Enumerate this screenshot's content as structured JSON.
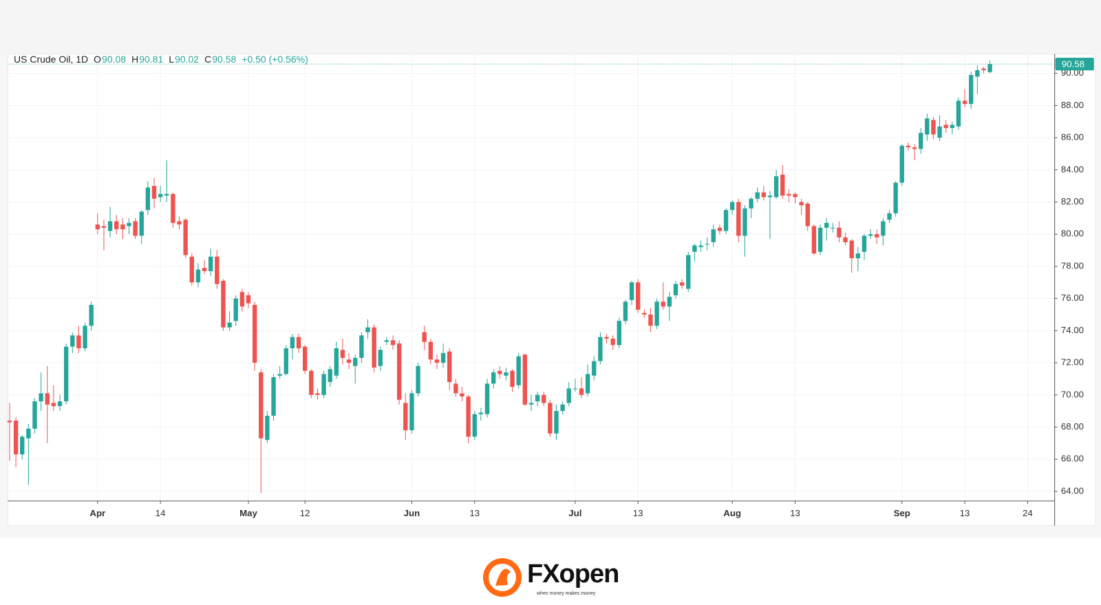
{
  "chart_data": {
    "type": "candlestick",
    "title": "US Crude Oil, 1D",
    "ohlc_letters": [
      "O",
      "H",
      "L",
      "C"
    ],
    "change_label": "+0.50 (+0.56%)",
    "up_color": "#26a69a",
    "down_color": "#ef5350",
    "grid": true,
    "ylim": [
      63.4,
      91.2
    ],
    "yticks": [
      {
        "value": 64,
        "label": "64.00"
      },
      {
        "value": 66,
        "label": "66.00"
      },
      {
        "value": 68,
        "label": "68.00"
      },
      {
        "value": 70,
        "label": "70.00"
      },
      {
        "value": 72,
        "label": "72.00"
      },
      {
        "value": 74,
        "label": "74.00"
      },
      {
        "value": 76,
        "label": "76.00"
      },
      {
        "value": 78,
        "label": "78.00"
      },
      {
        "value": 80,
        "label": "80.00"
      },
      {
        "value": 82,
        "label": "82.00"
      },
      {
        "value": 84,
        "label": "84.00"
      },
      {
        "value": 86,
        "label": "86.00"
      },
      {
        "value": 88,
        "label": "88.00"
      },
      {
        "value": 90,
        "label": "90.00"
      }
    ],
    "xlim": [
      -0.3,
      166.3
    ],
    "xticks": [
      {
        "value": 14,
        "label": "Apr"
      },
      {
        "value": 24,
        "label": "14"
      },
      {
        "value": 38,
        "label": "May"
      },
      {
        "value": 47,
        "label": "12"
      },
      {
        "value": 64,
        "label": "Jun"
      },
      {
        "value": 74,
        "label": "13"
      },
      {
        "value": 90,
        "label": "Jul"
      },
      {
        "value": 100,
        "label": "13"
      },
      {
        "value": 115,
        "label": "Aug"
      },
      {
        "value": 125,
        "label": "13"
      },
      {
        "value": 142,
        "label": "Sep"
      },
      {
        "value": 152,
        "label": "13"
      },
      {
        "value": 162,
        "label": "24"
      }
    ],
    "ohlc": [
      [
        68.4,
        69.5,
        65.9,
        68.3
      ],
      [
        68.4,
        68.6,
        65.5,
        66.3
      ],
      [
        66.3,
        67.5,
        66.0,
        67.4
      ],
      [
        67.3,
        68.2,
        64.4,
        67.9
      ],
      [
        67.9,
        69.8,
        67.6,
        69.6
      ],
      [
        69.6,
        71.4,
        69.0,
        70.1
      ],
      [
        70.1,
        71.8,
        67.0,
        69.4
      ],
      [
        69.5,
        70.6,
        69.0,
        69.3
      ],
      [
        69.3,
        70.0,
        69.0,
        69.6
      ],
      [
        69.6,
        73.2,
        69.4,
        73.0
      ],
      [
        73.0,
        73.9,
        72.6,
        73.7
      ],
      [
        73.7,
        74.3,
        72.6,
        72.9
      ],
      [
        72.9,
        74.5,
        72.7,
        74.3
      ],
      [
        74.3,
        75.8,
        74.0,
        75.6
      ],
      [
        80.6,
        81.3,
        80.0,
        80.3
      ],
      [
        80.5,
        80.9,
        79.0,
        80.4
      ],
      [
        80.2,
        81.7,
        79.8,
        80.8
      ],
      [
        80.8,
        81.2,
        80.0,
        80.3
      ],
      [
        80.6,
        81.0,
        79.7,
        80.3
      ],
      [
        80.5,
        81.0,
        80.0,
        80.7
      ],
      [
        80.8,
        81.0,
        79.7,
        79.9
      ],
      [
        79.9,
        81.5,
        79.4,
        81.4
      ],
      [
        81.5,
        83.3,
        81.2,
        82.9
      ],
      [
        83.0,
        83.5,
        81.6,
        82.2
      ],
      [
        82.3,
        83.0,
        82.0,
        82.5
      ],
      [
        82.4,
        84.6,
        82.0,
        82.5
      ],
      [
        82.5,
        82.6,
        80.4,
        80.7
      ],
      [
        80.8,
        81.1,
        80.3,
        80.6
      ],
      [
        80.9,
        81.0,
        78.5,
        78.7
      ],
      [
        78.6,
        78.8,
        76.8,
        77.0
      ],
      [
        77.0,
        78.2,
        76.7,
        77.8
      ],
      [
        77.9,
        78.4,
        77.5,
        77.7
      ],
      [
        77.7,
        79.1,
        77.4,
        78.6
      ],
      [
        78.6,
        79.0,
        76.6,
        76.9
      ],
      [
        77.1,
        77.2,
        74.0,
        74.2
      ],
      [
        74.2,
        75.2,
        74.0,
        74.5
      ],
      [
        74.6,
        76.2,
        74.3,
        76.0
      ],
      [
        76.4,
        76.6,
        75.2,
        75.5
      ],
      [
        76.2,
        76.4,
        75.4,
        75.7
      ],
      [
        75.6,
        75.8,
        71.5,
        72.0
      ],
      [
        71.4,
        71.6,
        63.9,
        67.3
      ],
      [
        67.2,
        69.0,
        67.0,
        68.7
      ],
      [
        68.7,
        71.3,
        68.4,
        71.1
      ],
      [
        71.2,
        71.8,
        71.0,
        71.3
      ],
      [
        71.3,
        73.1,
        71.2,
        72.9
      ],
      [
        72.9,
        73.8,
        72.2,
        73.6
      ],
      [
        73.6,
        73.8,
        72.6,
        72.9
      ],
      [
        73.0,
        73.1,
        71.3,
        71.5
      ],
      [
        71.5,
        71.6,
        69.8,
        70.0
      ],
      [
        70.1,
        70.4,
        69.7,
        70.0
      ],
      [
        70.0,
        71.5,
        69.8,
        71.3
      ],
      [
        70.8,
        71.8,
        70.5,
        71.6
      ],
      [
        71.2,
        73.3,
        71.0,
        72.9
      ],
      [
        72.8,
        73.5,
        71.9,
        72.3
      ],
      [
        72.2,
        72.6,
        71.6,
        72.0
      ],
      [
        71.8,
        72.5,
        70.7,
        72.3
      ],
      [
        72.3,
        73.9,
        72.0,
        73.7
      ],
      [
        73.9,
        74.7,
        73.5,
        74.2
      ],
      [
        74.2,
        74.4,
        71.4,
        71.7
      ],
      [
        71.8,
        73.0,
        71.5,
        72.8
      ],
      [
        73.3,
        73.6,
        73.1,
        73.4
      ],
      [
        73.4,
        73.7,
        72.8,
        73.1
      ],
      [
        73.2,
        73.4,
        69.4,
        69.7
      ],
      [
        69.5,
        70.1,
        67.2,
        67.8
      ],
      [
        67.8,
        70.3,
        67.6,
        70.1
      ],
      [
        70.1,
        72.0,
        69.9,
        71.8
      ],
      [
        73.9,
        74.3,
        72.8,
        73.3
      ],
      [
        73.3,
        73.5,
        71.9,
        72.2
      ],
      [
        72.2,
        72.5,
        71.6,
        72.0
      ],
      [
        72.0,
        73.2,
        71.7,
        72.6
      ],
      [
        72.7,
        72.9,
        70.3,
        70.8
      ],
      [
        70.7,
        71.0,
        69.9,
        70.1
      ],
      [
        70.1,
        70.5,
        69.6,
        69.9
      ],
      [
        69.9,
        70.0,
        67.0,
        67.4
      ],
      [
        67.4,
        69.0,
        67.2,
        68.8
      ],
      [
        68.8,
        69.2,
        68.4,
        68.9
      ],
      [
        68.8,
        71.0,
        68.6,
        70.7
      ],
      [
        70.7,
        71.6,
        70.4,
        71.4
      ],
      [
        71.5,
        71.8,
        71.0,
        71.3
      ],
      [
        71.2,
        71.7,
        70.9,
        71.4
      ],
      [
        71.5,
        71.6,
        70.2,
        70.5
      ],
      [
        70.6,
        72.6,
        70.4,
        72.4
      ],
      [
        72.5,
        72.6,
        69.3,
        69.4
      ],
      [
        69.4,
        70.0,
        69.0,
        69.5
      ],
      [
        69.6,
        70.2,
        69.3,
        70.0
      ],
      [
        70.0,
        70.2,
        69.3,
        69.5
      ],
      [
        69.5,
        69.7,
        67.4,
        67.6
      ],
      [
        67.6,
        69.4,
        67.2,
        69.0
      ],
      [
        69.0,
        69.6,
        68.8,
        69.4
      ],
      [
        69.5,
        70.8,
        69.3,
        70.4
      ],
      [
        70.4,
        71.0,
        70.2,
        70.4
      ],
      [
        70.4,
        71.1,
        69.8,
        70.0
      ],
      [
        70.1,
        71.9,
        69.9,
        71.3
      ],
      [
        71.2,
        72.4,
        70.9,
        72.1
      ],
      [
        72.1,
        73.9,
        71.9,
        73.6
      ],
      [
        73.6,
        73.8,
        73.2,
        73.5
      ],
      [
        73.5,
        73.7,
        72.8,
        73.1
      ],
      [
        73.1,
        74.8,
        72.9,
        74.6
      ],
      [
        74.6,
        75.9,
        74.4,
        75.8
      ],
      [
        75.9,
        77.1,
        75.6,
        77.0
      ],
      [
        77.0,
        77.2,
        75.1,
        75.3
      ],
      [
        75.1,
        75.3,
        74.8,
        75.0
      ],
      [
        75.0,
        75.4,
        73.9,
        74.3
      ],
      [
        74.3,
        76.0,
        74.1,
        75.8
      ],
      [
        75.8,
        77.0,
        75.3,
        75.5
      ],
      [
        75.5,
        76.4,
        74.6,
        76.1
      ],
      [
        76.2,
        77.1,
        76.0,
        76.9
      ],
      [
        77.0,
        77.2,
        76.6,
        76.8
      ],
      [
        76.6,
        78.9,
        76.4,
        78.7
      ],
      [
        78.9,
        79.4,
        78.3,
        79.3
      ],
      [
        79.2,
        79.6,
        78.9,
        79.3
      ],
      [
        79.4,
        79.8,
        79.0,
        79.4
      ],
      [
        79.5,
        80.6,
        79.2,
        80.3
      ],
      [
        80.4,
        80.6,
        80.0,
        80.2
      ],
      [
        80.2,
        81.6,
        80.0,
        81.5
      ],
      [
        81.5,
        82.1,
        81.2,
        82.0
      ],
      [
        82.0,
        82.2,
        79.5,
        79.9
      ],
      [
        79.9,
        81.8,
        78.6,
        81.6
      ],
      [
        81.6,
        82.3,
        81.0,
        82.2
      ],
      [
        82.2,
        82.9,
        82.0,
        82.6
      ],
      [
        82.6,
        83.0,
        82.1,
        82.3
      ],
      [
        82.3,
        82.7,
        79.7,
        82.4
      ],
      [
        82.3,
        84.0,
        82.2,
        83.6
      ],
      [
        83.7,
        84.3,
        82.2,
        82.4
      ],
      [
        82.5,
        82.8,
        82.0,
        82.4
      ],
      [
        82.5,
        82.6,
        81.9,
        82.3
      ],
      [
        82.0,
        82.2,
        81.2,
        81.8
      ],
      [
        81.9,
        82.0,
        80.2,
        80.5
      ],
      [
        80.5,
        80.6,
        78.7,
        78.8
      ],
      [
        78.9,
        80.6,
        78.7,
        80.4
      ],
      [
        80.4,
        81.0,
        79.6,
        80.7
      ],
      [
        80.4,
        80.7,
        80.1,
        80.4
      ],
      [
        80.4,
        80.8,
        79.5,
        79.8
      ],
      [
        79.8,
        80.1,
        79.3,
        79.5
      ],
      [
        79.6,
        79.7,
        77.6,
        78.5
      ],
      [
        78.5,
        79.2,
        77.7,
        78.8
      ],
      [
        78.9,
        80.0,
        78.4,
        79.9
      ],
      [
        79.9,
        80.3,
        79.7,
        80.0
      ],
      [
        80.0,
        80.3,
        79.4,
        79.8
      ],
      [
        79.9,
        81.0,
        79.3,
        80.8
      ],
      [
        80.9,
        81.5,
        80.7,
        81.3
      ],
      [
        81.3,
        83.3,
        81.1,
        83.2
      ],
      [
        83.2,
        85.6,
        83.0,
        85.5
      ],
      [
        85.5,
        85.7,
        85.2,
        85.4
      ],
      [
        85.4,
        85.6,
        84.6,
        85.3
      ],
      [
        85.3,
        86.6,
        85.0,
        86.3
      ],
      [
        86.2,
        87.5,
        85.8,
        87.2
      ],
      [
        87.1,
        87.3,
        85.9,
        86.2
      ],
      [
        86.0,
        87.4,
        85.8,
        86.7
      ],
      [
        86.8,
        87.1,
        86.3,
        86.6
      ],
      [
        86.6,
        87.0,
        86.2,
        86.8
      ],
      [
        86.7,
        88.5,
        86.5,
        88.3
      ],
      [
        88.3,
        89.0,
        87.9,
        88.1
      ],
      [
        88.1,
        90.1,
        87.8,
        89.9
      ],
      [
        89.8,
        90.5,
        88.7,
        90.2
      ],
      [
        90.3,
        90.4,
        90.0,
        90.2
      ],
      [
        90.08,
        90.81,
        90.02,
        90.58
      ]
    ]
  },
  "logo": {
    "name": "FXopen",
    "tagline": "when money makes money"
  }
}
